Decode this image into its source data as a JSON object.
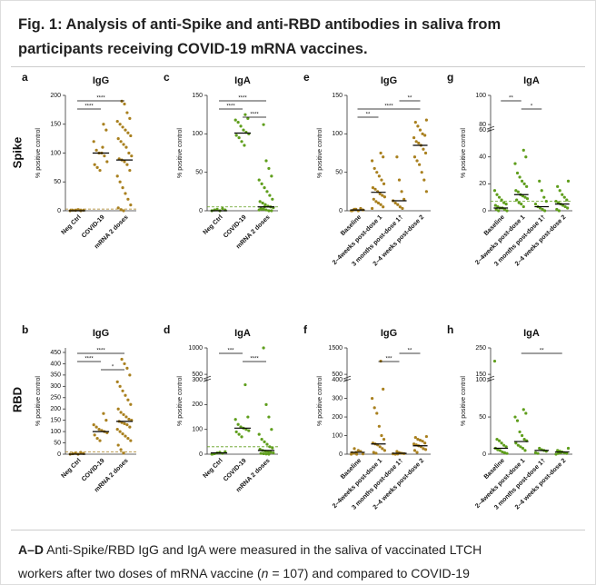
{
  "figure_title": [
    "Fig. 1: Analysis of anti-Spike and anti-RBD antibodies in saliva from",
    "participants receiving COVID-19 mRNA vaccines."
  ],
  "row_labels": [
    "Spike",
    "RBD"
  ],
  "caption": {
    "lead": "A–D",
    "line1": " Anti-Spike/RBD IgG and IgA were measured in the saliva of vaccinated LTCH",
    "line2a": "workers after two doses of mRNA vaccine (",
    "italic": "n",
    "line2b": " = 107) and compared to COVID-19"
  },
  "chart_data": [
    {
      "type": "strip",
      "panel": "a",
      "title": "IgG",
      "y_label": "% positive control",
      "color": "#a9801f",
      "categories": [
        "Neg Ctrl",
        "COVID-19",
        "mRNA 2 doses"
      ],
      "values": [
        [
          0,
          1,
          0.5,
          2,
          0,
          1
        ],
        [
          150,
          140,
          120,
          105,
          100,
          100,
          95,
          85,
          80,
          75,
          70,
          110
        ],
        [
          190,
          185,
          170,
          160,
          155,
          150,
          145,
          140,
          135,
          130,
          125,
          120,
          115,
          110,
          100,
          95,
          90,
          88,
          85,
          80,
          70,
          60,
          50,
          40,
          30,
          20,
          10,
          5,
          2,
          0
        ]
      ],
      "medians": [
        0,
        100,
        88
      ],
      "threshold": 3,
      "ylim": [
        0,
        200
      ],
      "yticks": [
        0,
        50,
        100,
        150,
        200
      ],
      "brackets": [
        {
          "from": "Neg Ctrl",
          "to": "mRNA 2 doses",
          "label": "****"
        },
        {
          "from": "Neg Ctrl",
          "to": "COVID-19",
          "label": "****"
        }
      ]
    },
    {
      "type": "strip",
      "panel": "c",
      "title": "IgA",
      "y_label": "% positive control",
      "color": "#5f9e1c",
      "categories": [
        "Neg Ctrl",
        "COVID-19",
        "mRNA 2 doses"
      ],
      "values": [
        [
          0,
          1,
          2,
          0,
          3,
          1
        ],
        [
          125,
          120,
          118,
          115,
          110,
          105,
          102,
          100,
          98,
          95,
          90,
          85
        ],
        [
          112,
          65,
          55,
          45,
          40,
          35,
          30,
          25,
          20,
          15,
          12,
          10,
          8,
          6,
          5,
          4,
          3,
          2,
          1,
          0,
          0,
          1,
          2,
          5
        ]
      ],
      "medians": [
        0,
        101,
        5
      ],
      "threshold": 5,
      "ylim": [
        0,
        150
      ],
      "yticks": [
        0,
        50,
        100,
        150
      ],
      "brackets": [
        {
          "from": "Neg Ctrl",
          "to": "mRNA 2 doses",
          "label": "****"
        },
        {
          "from": "Neg Ctrl",
          "to": "COVID-19",
          "label": "****"
        },
        {
          "from": "COVID-19",
          "to": "mRNA 2 doses",
          "label": "****"
        }
      ]
    },
    {
      "type": "strip",
      "panel": "e",
      "title": "IgG",
      "y_label": "% positive control",
      "color": "#a9801f",
      "categories": [
        "Baseline",
        "2–4weeks post-dose 1",
        "3 months post-dose 1†",
        "2–4 weeks post-dose 2"
      ],
      "values": [
        [
          0,
          1,
          2,
          0,
          3,
          1,
          0,
          2
        ],
        [
          75,
          70,
          65,
          55,
          50,
          45,
          40,
          35,
          30,
          28,
          25,
          22,
          20,
          18,
          15,
          12,
          10,
          8,
          5,
          3
        ],
        [
          70,
          40,
          25,
          15,
          13,
          10,
          8,
          5,
          3
        ],
        [
          118,
          115,
          110,
          105,
          100,
          98,
          95,
          90,
          88,
          85,
          80,
          75,
          70,
          65,
          60,
          50,
          40,
          25
        ]
      ],
      "medians": [
        1,
        24,
        13,
        85
      ],
      "ylim": [
        0,
        150
      ],
      "yticks": [
        0,
        50,
        100,
        150
      ],
      "brackets": [
        {
          "from": "3 months post-dose 1†",
          "to": "2–4 weeks post-dose 2",
          "label": "**"
        },
        {
          "from": "Baseline",
          "to": "2–4 weeks post-dose 2",
          "label": "****"
        },
        {
          "from": "Baseline",
          "to": "2–4weeks post-dose 1",
          "label": "**"
        }
      ]
    },
    {
      "type": "strip",
      "panel": "g",
      "title": "IgA",
      "y_label": "% positive control",
      "color": "#5f9e1c",
      "categories": [
        "Baseline",
        "2–4weeks post-dose 1",
        "3 months post-dose 1†",
        "2–4 weeks post-dose 2"
      ],
      "values": [
        [
          15,
          12,
          10,
          8,
          6,
          5,
          4,
          3,
          2,
          2,
          1,
          0,
          1,
          0
        ],
        [
          45,
          40,
          35,
          28,
          25,
          22,
          20,
          18,
          15,
          14,
          12,
          11,
          10,
          9,
          8,
          6,
          5,
          3
        ],
        [
          22,
          15,
          10,
          7,
          5,
          3,
          2,
          1,
          0
        ],
        [
          22,
          18,
          15,
          12,
          10,
          8,
          7,
          6,
          5,
          4,
          3,
          2,
          1,
          0
        ]
      ],
      "medians": [
        2,
        12,
        3,
        5
      ],
      "threshold": 7,
      "ylim": [
        0,
        100
      ],
      "ybreak": [
        60,
        80
      ],
      "yticks": [
        0,
        20,
        40,
        60,
        80,
        100
      ],
      "brackets": [
        {
          "from": "Baseline",
          "to": "2–4weeks post-dose 1",
          "label": "**"
        },
        {
          "from": "2–4weeks post-dose 1",
          "to": "3 months post-dose 1†",
          "label": "*"
        }
      ]
    },
    {
      "type": "strip",
      "panel": "b",
      "title": "IgG",
      "y_label": "% positive control",
      "color": "#a9801f",
      "categories": [
        "Neg Ctrl",
        "COVID-19",
        "mRNA 2 doses"
      ],
      "values": [
        [
          0,
          2,
          5,
          0,
          8,
          3
        ],
        [
          180,
          150,
          130,
          120,
          110,
          105,
          100,
          95,
          85,
          70,
          60
        ],
        [
          420,
          400,
          380,
          350,
          320,
          300,
          280,
          260,
          240,
          220,
          200,
          185,
          175,
          165,
          155,
          150,
          145,
          140,
          135,
          130,
          120,
          110,
          100,
          90,
          80,
          70,
          60,
          40,
          20,
          5
        ]
      ],
      "medians": [
        0,
        100,
        145
      ],
      "threshold": 10,
      "ylim": [
        0,
        470
      ],
      "yticks": [
        0,
        50,
        100,
        150,
        200,
        250,
        300,
        350,
        400,
        450
      ],
      "brackets": [
        {
          "from": "Neg Ctrl",
          "to": "mRNA 2 doses",
          "label": "****"
        },
        {
          "from": "Neg Ctrl",
          "to": "COVID-19",
          "label": "****"
        },
        {
          "from": "COVID-19",
          "to": "mRNA 2 doses",
          "label": "*"
        }
      ]
    },
    {
      "type": "strip",
      "panel": "d",
      "title": "IgA",
      "y_label": "% positive control",
      "color": "#5f9e1c",
      "categories": [
        "Neg Ctrl",
        "COVID-19",
        "mRNA 2 doses"
      ],
      "values": [
        [
          0,
          2,
          5,
          8,
          3,
          10,
          1
        ],
        [
          280,
          150,
          140,
          120,
          110,
          105,
          100,
          95,
          90,
          80,
          70
        ],
        [
          1000,
          200,
          150,
          100,
          80,
          60,
          50,
          40,
          30,
          25,
          20,
          15,
          12,
          10,
          8,
          5,
          3,
          2,
          1,
          0
        ]
      ],
      "medians": [
        5,
        105,
        15
      ],
      "threshold": 30,
      "ylim": [
        0,
        1000
      ],
      "ybreak": [
        300,
        500
      ],
      "yticks": [
        0,
        100,
        200,
        300,
        500,
        1000
      ],
      "brackets": [
        {
          "from": "Neg Ctrl",
          "to": "COVID-19",
          "label": "***"
        },
        {
          "from": "COVID-19",
          "to": "mRNA 2 doses",
          "label": "****"
        }
      ]
    },
    {
      "type": "strip",
      "panel": "f",
      "title": "IgG",
      "y_label": "% positive control",
      "color": "#a9801f",
      "categories": [
        "Baseline",
        "2–4weeks post-dose 1",
        "3 months post-dose 1†",
        "2–4 weeks post-dose 2"
      ],
      "values": [
        [
          0,
          5,
          10,
          20,
          15,
          2,
          8,
          30,
          0
        ],
        [
          1000,
          350,
          300,
          250,
          220,
          150,
          100,
          80,
          60,
          55,
          50,
          40,
          30,
          20,
          10,
          5
        ],
        [
          15,
          8,
          5,
          3,
          2,
          0,
          1
        ],
        [
          95,
          90,
          80,
          75,
          70,
          60,
          55,
          50,
          45,
          40,
          30,
          25,
          20,
          10
        ]
      ],
      "medians": [
        10,
        55,
        5,
        45
      ],
      "ylim": [
        0,
        1500
      ],
      "ybreak": [
        400,
        500
      ],
      "yticks": [
        0,
        100,
        200,
        300,
        400,
        500,
        1500
      ],
      "brackets": [
        {
          "from": "3 months post-dose 1†",
          "to": "2–4 weeks post-dose 2",
          "label": "**"
        },
        {
          "from": "2–4weeks post-dose 1",
          "to": "3 months post-dose 1†",
          "label": "***"
        }
      ]
    },
    {
      "type": "strip",
      "panel": "h",
      "title": "IgA",
      "y_label": "% positive control",
      "color": "#5f9e1c",
      "categories": [
        "Baseline",
        "2–4weeks post-dose 1",
        "3 months post-dose 1†",
        "2–4 weeks post-dose 2"
      ],
      "values": [
        [
          200,
          20,
          18,
          15,
          12,
          10,
          8,
          6,
          5,
          3,
          2,
          1
        ],
        [
          60,
          55,
          50,
          45,
          30,
          25,
          20,
          18,
          15,
          12,
          10,
          8,
          5
        ],
        [
          8,
          6,
          5,
          4,
          2,
          1
        ],
        [
          8,
          5,
          4,
          3,
          2,
          1,
          0,
          1,
          2
        ]
      ],
      "medians": [
        8,
        17,
        5,
        3
      ],
      "ylim": [
        0,
        250
      ],
      "ybreak": [
        100,
        150
      ],
      "yticks": [
        0,
        50,
        100,
        150,
        250
      ],
      "brackets": [
        {
          "from": "2–4weeks post-dose 1",
          "to": "2–4 weeks post-dose 2",
          "label": "**"
        }
      ]
    }
  ]
}
